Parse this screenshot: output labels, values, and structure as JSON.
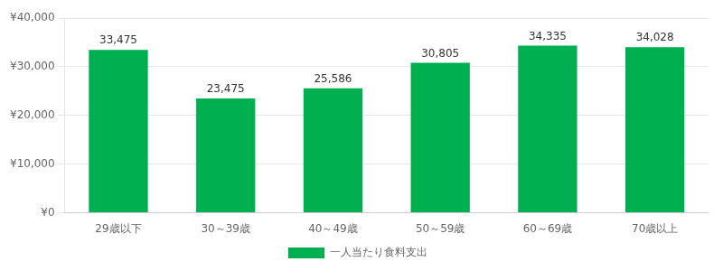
{
  "chart_data": {
    "type": "bar",
    "categories": [
      "29歳以下",
      "30～39歳",
      "40～49歳",
      "50～59歳",
      "60～69歳",
      "70歳以上"
    ],
    "series": [
      {
        "name": "一人当たり食料支出",
        "color": "#00b050",
        "values": [
          33475,
          23475,
          25586,
          30805,
          34335,
          34028
        ],
        "value_labels": [
          "33,475",
          "23,475",
          "25,586",
          "30,805",
          "34,335",
          "34,028"
        ]
      }
    ],
    "ylim": [
      0,
      40000
    ],
    "yticks": [
      {
        "value": 0,
        "label": "¥0"
      },
      {
        "value": 10000,
        "label": "¥10,000"
      },
      {
        "value": 20000,
        "label": "¥20,000"
      },
      {
        "value": 30000,
        "label": "¥30,000"
      },
      {
        "value": 40000,
        "label": "¥40,000"
      }
    ],
    "grid": true,
    "legend": "bottom",
    "data_labels": true
  }
}
